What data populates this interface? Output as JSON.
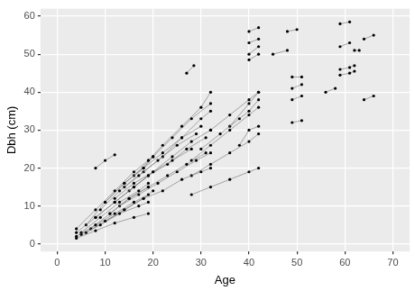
{
  "chart_data": {
    "type": "line",
    "xlabel": "Age",
    "ylabel": "Dbh (cm)",
    "xlim": [
      -3.5,
      73.5
    ],
    "xticks": [
      0,
      10,
      20,
      30,
      40,
      50,
      60,
      70
    ],
    "ylim": [
      -2,
      62
    ],
    "yticks": [
      0,
      10,
      20,
      30,
      40,
      50,
      60
    ],
    "grid": true,
    "color": "#000000",
    "marker": "circle",
    "line_style": "solid",
    "series": [
      {
        "x": [
          4,
          8,
          12,
          16,
          19
        ],
        "values": [
          2,
          5,
          8,
          11,
          13
        ]
      },
      {
        "x": [
          4,
          8,
          12,
          16,
          19
        ],
        "values": [
          3,
          7,
          11,
          15,
          18
        ]
      },
      {
        "x": [
          4,
          8,
          12,
          16,
          19
        ],
        "values": [
          4,
          9,
          14,
          19,
          22
        ]
      },
      {
        "x": [
          4,
          8,
          12,
          16,
          19
        ],
        "values": [
          1.5,
          3.5,
          5.5,
          7,
          8
        ]
      },
      {
        "x": [
          5,
          9,
          13,
          17,
          19
        ],
        "values": [
          3,
          7,
          11,
          14,
          16
        ]
      },
      {
        "x": [
          5,
          9,
          13,
          17,
          19
        ],
        "values": [
          2.5,
          5,
          8,
          10,
          11
        ]
      },
      {
        "x": [
          6,
          10,
          14,
          18,
          20
        ],
        "values": [
          5,
          11,
          16,
          20,
          23
        ]
      },
      {
        "x": [
          6,
          10,
          14,
          18,
          20
        ],
        "values": [
          3,
          6,
          9,
          12,
          14
        ]
      },
      {
        "x": [
          7,
          11,
          15,
          19
        ],
        "values": [
          4,
          8,
          12,
          15
        ]
      },
      {
        "x": [
          8,
          12,
          16,
          20,
          24,
          28
        ],
        "values": [
          7,
          11,
          15,
          19,
          22,
          25
        ]
      },
      {
        "x": [
          9,
          13,
          17,
          21,
          25,
          29
        ],
        "values": [
          9,
          14,
          18,
          22,
          26,
          29
        ]
      },
      {
        "x": [
          10,
          14,
          18,
          22,
          26,
          30
        ],
        "values": [
          11,
          16,
          20,
          24,
          28,
          31
        ]
      },
      {
        "x": [
          10,
          14,
          18,
          22,
          26,
          30,
          32
        ],
        "values": [
          6,
          9,
          12,
          14,
          17,
          19,
          20
        ]
      },
      {
        "x": [
          11,
          15,
          19,
          23,
          27,
          31
        ],
        "values": [
          8,
          12,
          15,
          18,
          21,
          24
        ]
      },
      {
        "x": [
          12,
          16,
          20,
          24,
          28,
          32
        ],
        "values": [
          12,
          16,
          19,
          23,
          27,
          30
        ]
      },
      {
        "x": [
          13,
          17,
          21,
          25,
          29,
          32
        ],
        "values": [
          10,
          13,
          16,
          19,
          22,
          24
        ]
      },
      {
        "x": [
          14,
          18,
          22,
          26,
          30,
          32
        ],
        "values": [
          15,
          19,
          23,
          28,
          33,
          35
        ]
      },
      {
        "x": [
          15,
          19,
          23,
          27,
          31
        ],
        "values": [
          14,
          18,
          21,
          25,
          28
        ]
      },
      {
        "x": [
          16,
          20,
          24,
          28,
          32
        ],
        "values": [
          18,
          23,
          28,
          33,
          37
        ]
      },
      {
        "x": [
          19,
          22,
          26,
          30,
          32
        ],
        "values": [
          22,
          26,
          31,
          36,
          40
        ]
      },
      {
        "x": [
          8,
          10,
          12
        ],
        "values": [
          20,
          22,
          23.5
        ]
      },
      {
        "x": [
          27,
          28.5
        ],
        "values": [
          45,
          47
        ]
      },
      {
        "x": [
          28,
          32,
          36,
          40,
          42
        ],
        "values": [
          13,
          15,
          17,
          19,
          20
        ]
      },
      {
        "x": [
          28,
          32,
          36,
          40,
          42
        ],
        "values": [
          18,
          21,
          24,
          27,
          29
        ]
      },
      {
        "x": [
          28,
          32,
          36,
          40,
          42
        ],
        "values": [
          22,
          26,
          30,
          34,
          36
        ]
      },
      {
        "x": [
          30,
          34,
          38,
          40,
          42
        ],
        "values": [
          25,
          29,
          33,
          35,
          38
        ]
      },
      {
        "x": [
          32,
          36,
          40,
          42
        ],
        "values": [
          30,
          34,
          38,
          40
        ]
      },
      {
        "x": [
          36,
          40,
          42
        ],
        "values": [
          31,
          37,
          40
        ]
      },
      {
        "x": [
          38,
          40,
          42
        ],
        "values": [
          26,
          30,
          31
        ]
      },
      {
        "x": [
          40,
          42
        ],
        "values": [
          56,
          57
        ]
      },
      {
        "x": [
          40,
          42
        ],
        "values": [
          53,
          54
        ]
      },
      {
        "x": [
          40,
          42
        ],
        "values": [
          50,
          52
        ]
      },
      {
        "x": [
          40,
          42
        ],
        "values": [
          48.5,
          50
        ]
      },
      {
        "x": [
          45,
          48
        ],
        "values": [
          50,
          51
        ]
      },
      {
        "x": [
          48,
          50
        ],
        "values": [
          56,
          56.5
        ]
      },
      {
        "x": [
          49,
          51
        ],
        "values": [
          44,
          44
        ]
      },
      {
        "x": [
          49,
          51
        ],
        "values": [
          41,
          42
        ]
      },
      {
        "x": [
          49,
          51
        ],
        "values": [
          38,
          39
        ]
      },
      {
        "x": [
          49,
          51
        ],
        "values": [
          32,
          32.5
        ]
      },
      {
        "x": [
          56,
          58
        ],
        "values": [
          40,
          41
        ]
      },
      {
        "x": [
          59,
          61
        ],
        "values": [
          58,
          58.5
        ]
      },
      {
        "x": [
          59,
          61
        ],
        "values": [
          52,
          53
        ]
      },
      {
        "x": [
          59,
          61,
          62
        ],
        "values": [
          46,
          46.5,
          47
        ]
      },
      {
        "x": [
          59,
          61,
          62
        ],
        "values": [
          44.5,
          45,
          45.5
        ]
      },
      {
        "x": [
          62,
          63
        ],
        "values": [
          51,
          51
        ]
      },
      {
        "x": [
          64,
          66
        ],
        "values": [
          54,
          55
        ]
      },
      {
        "x": [
          64,
          66
        ],
        "values": [
          38,
          39
        ]
      }
    ]
  }
}
